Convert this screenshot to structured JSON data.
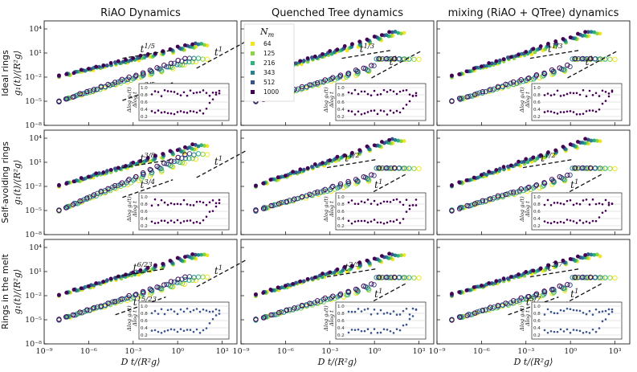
{
  "figure": {
    "column_titles": [
      "RiAO Dynamics",
      "Quenched Tree dynamics",
      "mixing (RiAO + QTree) dynamics"
    ],
    "row_labels": [
      "Ideal rings",
      "Self-avoiding rings",
      "Rings in the melt"
    ],
    "ylabel": "g₁(t)/⟨R²g⟩",
    "xlabel": "D t/⟨R²g⟩",
    "inset_ylabel_num": "Δlog g₁(t)",
    "inset_ylabel_den": "Δlog t",
    "inset_yticks": [
      "1.0",
      "0.8",
      "0.6",
      "0.4",
      "0.2"
    ]
  },
  "legend": {
    "title": "Nm",
    "entries": [
      {
        "label": "64",
        "color": "#f4e61e"
      },
      {
        "label": "125",
        "color": "#8ad645"
      },
      {
        "label": "216",
        "color": "#2db47d"
      },
      {
        "label": "343",
        "color": "#26828e"
      },
      {
        "label": "512",
        "color": "#3a538b"
      },
      {
        "label": "1000",
        "color": "#440154"
      }
    ]
  },
  "chart_data": [
    {
      "type": "scatter",
      "title": "RiAO Dynamics",
      "row": "Ideal rings",
      "xlog": true,
      "ylog": true,
      "xlim": [
        1e-09,
        10000.0
      ],
      "ylim": [
        1e-08,
        100000.0
      ],
      "xticks": [
        "10⁻⁹",
        "10⁻⁶",
        "10⁻³",
        "10⁰",
        "10³"
      ],
      "yticks": [
        "10⁴",
        "10¹",
        "10⁻²",
        "10⁻⁵",
        "10⁻⁸"
      ],
      "annotations": [
        {
          "text": "t^1/5",
          "x": 0.003,
          "y": 20
        },
        {
          "text": "t^1",
          "x": 300,
          "y": 8
        },
        {
          "text": "t^3/5",
          "x": 0.003,
          "y": 0.0003
        }
      ],
      "series": [
        {
          "name": "filled (cm)",
          "x_range": [
            1e-08,
            100
          ],
          "y_range": [
            0.01,
            100
          ]
        },
        {
          "name": "open (monomer)",
          "x_range": [
            1e-08,
            100
          ],
          "y_range": [
            1e-05,
            2
          ]
        }
      ]
    },
    {
      "type": "scatter",
      "title": "Quenched Tree dynamics",
      "row": "Ideal rings",
      "xlog": true,
      "ylog": true,
      "xlim": [
        1e-09,
        10000.0
      ],
      "ylim": [
        1e-08,
        100000.0
      ],
      "annotations": [
        {
          "text": "t^1/3",
          "x": 0.1,
          "y": 20
        },
        {
          "text": "t^1",
          "x": 10,
          "y": 0.5
        }
      ],
      "series": [
        {
          "name": "filled (cm)",
          "x_range": [
            1e-08,
            100
          ],
          "y_range": [
            0.01,
            3000
          ]
        },
        {
          "name": "open (monomer)",
          "x_range": [
            1e-08,
            1000
          ],
          "y_range": [
            1e-05,
            2
          ]
        }
      ]
    },
    {
      "type": "scatter",
      "title": "mixing (RiAO + QTree) dynamics",
      "row": "Ideal rings",
      "xlog": true,
      "ylog": true,
      "xlim": [
        1e-09,
        10000.0
      ],
      "ylim": [
        1e-08,
        100000.0
      ],
      "annotations": [
        {
          "text": "t^1/3",
          "x": 0.03,
          "y": 20
        },
        {
          "text": "t^1",
          "x": 10,
          "y": 0.5
        }
      ],
      "series": [
        {
          "name": "filled (cm)",
          "x_range": [
            1e-08,
            100
          ],
          "y_range": [
            0.01,
            3000
          ]
        },
        {
          "name": "open (monomer)",
          "x_range": [
            1e-08,
            1000
          ],
          "y_range": [
            1e-05,
            2
          ]
        }
      ]
    },
    {
      "type": "scatter",
      "title": "RiAO Dynamics",
      "row": "Self-avoiding rings",
      "xlog": true,
      "ylog": true,
      "xlim": [
        1e-09,
        10000.0
      ],
      "ylim": [
        1e-08,
        100000.0
      ],
      "annotations": [
        {
          "text": "t^3/8",
          "x": 0.003,
          "y": 20
        },
        {
          "text": "t^1",
          "x": 300,
          "y": 8
        },
        {
          "text": "t^3/4",
          "x": 0.003,
          "y": 0.01
        }
      ],
      "series": [
        {
          "name": "filled (cm)",
          "x_range": [
            1e-08,
            100
          ],
          "y_range": [
            0.01,
            1000
          ]
        },
        {
          "name": "open (monomer)",
          "x_range": [
            1e-08,
            100
          ],
          "y_range": [
            1e-05,
            100
          ]
        }
      ]
    },
    {
      "type": "scatter",
      "title": "Quenched Tree dynamics",
      "row": "Self-avoiding rings",
      "xlog": true,
      "ylog": true,
      "xlim": [
        1e-09,
        10000.0
      ],
      "ylim": [
        1e-08,
        100000.0
      ],
      "annotations": [
        {
          "text": "t^1/2",
          "x": 0.01,
          "y": 20
        },
        {
          "text": "t^1",
          "x": 1,
          "y": 0.01
        }
      ],
      "series": [
        {
          "name": "filled (cm)",
          "x_range": [
            1e-08,
            100
          ],
          "y_range": [
            0.01,
            5000
          ]
        },
        {
          "name": "open (monomer)",
          "x_range": [
            1e-08,
            1000
          ],
          "y_range": [
            1e-05,
            2
          ]
        }
      ]
    },
    {
      "type": "scatter",
      "title": "mixing (RiAO + QTree) dynamics",
      "row": "Self-avoiding rings",
      "xlog": true,
      "ylog": true,
      "xlim": [
        1e-09,
        10000.0
      ],
      "ylim": [
        1e-08,
        100000.0
      ],
      "annotations": [
        {
          "text": "t^1/2",
          "x": 0.01,
          "y": 20
        },
        {
          "text": "t^1",
          "x": 1,
          "y": 0.01
        }
      ],
      "series": [
        {
          "name": "filled (cm)",
          "x_range": [
            1e-08,
            100
          ],
          "y_range": [
            0.01,
            5000
          ]
        },
        {
          "name": "open (monomer)",
          "x_range": [
            1e-08,
            1000
          ],
          "y_range": [
            1e-05,
            2
          ]
        }
      ]
    },
    {
      "type": "scatter",
      "title": "RiAO Dynamics",
      "row": "Rings in the melt",
      "xlog": true,
      "ylog": true,
      "xlim": [
        1e-09,
        10000.0
      ],
      "ylim": [
        1e-08,
        100000.0
      ],
      "annotations": [
        {
          "text": "t^6/23",
          "x": 0.001,
          "y": 20
        },
        {
          "text": "t^1",
          "x": 300,
          "y": 8
        },
        {
          "text": "t^15/23",
          "x": 0.001,
          "y": 0.001
        }
      ],
      "series": [
        {
          "name": "filled (cm)",
          "x_range": [
            1e-08,
            100
          ],
          "y_range": [
            0.01,
            1000
          ]
        },
        {
          "name": "open (monomer)",
          "x_range": [
            1e-08,
            100
          ],
          "y_range": [
            1e-05,
            2
          ]
        }
      ]
    },
    {
      "type": "scatter",
      "title": "Quenched Tree dynamics",
      "row": "Rings in the melt",
      "xlog": true,
      "ylog": true,
      "xlim": [
        1e-09,
        10000.0
      ],
      "ylim": [
        1e-08,
        100000.0
      ],
      "annotations": [
        {
          "text": "t^2/5",
          "x": 0.01,
          "y": 20
        },
        {
          "text": "t^1",
          "x": 1,
          "y": 0.01
        }
      ],
      "series": [
        {
          "name": "filled (cm)",
          "x_range": [
            1e-08,
            100
          ],
          "y_range": [
            0.01,
            1000
          ]
        },
        {
          "name": "open (monomer)",
          "x_range": [
            1e-08,
            1000
          ],
          "y_range": [
            1e-05,
            2
          ]
        }
      ]
    },
    {
      "type": "scatter",
      "title": "mixing (RiAO + QTree) dynamics",
      "row": "Rings in the melt",
      "xlog": true,
      "ylog": true,
      "xlim": [
        1e-09,
        10000.0
      ],
      "ylim": [
        1e-08,
        100000.0
      ],
      "annotations": [
        {
          "text": "t^2/7",
          "x": 0.03,
          "y": 20
        },
        {
          "text": "t^1",
          "x": 1,
          "y": 0.01
        },
        {
          "text": "t^5/7",
          "x": 0.001,
          "y": 0.001
        }
      ],
      "series": [
        {
          "name": "filled (cm)",
          "x_range": [
            1e-08,
            100
          ],
          "y_range": [
            0.01,
            1000
          ]
        },
        {
          "name": "open (monomer)",
          "x_range": [
            1e-08,
            1000
          ],
          "y_range": [
            1e-05,
            2
          ]
        }
      ]
    }
  ]
}
